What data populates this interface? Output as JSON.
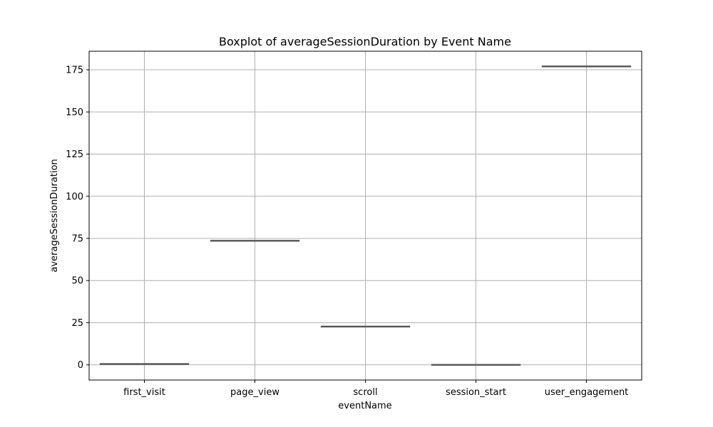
{
  "chart_data": {
    "type": "box",
    "title": "Boxplot of averageSessionDuration by Event Name",
    "xlabel": "eventName",
    "ylabel": "averageSessionDuration",
    "categories": [
      "first_visit",
      "page_view",
      "scroll",
      "session_start",
      "user_engagement"
    ],
    "values": [
      0.5,
      73.6,
      22.7,
      0,
      177
    ],
    "ylim": [
      -9,
      186
    ],
    "yticks": [
      0,
      25,
      50,
      75,
      100,
      125,
      150,
      175
    ],
    "grid": true,
    "colors": {
      "box": "#555555",
      "grid": "#b0b0b0",
      "axis": "#000000"
    }
  }
}
